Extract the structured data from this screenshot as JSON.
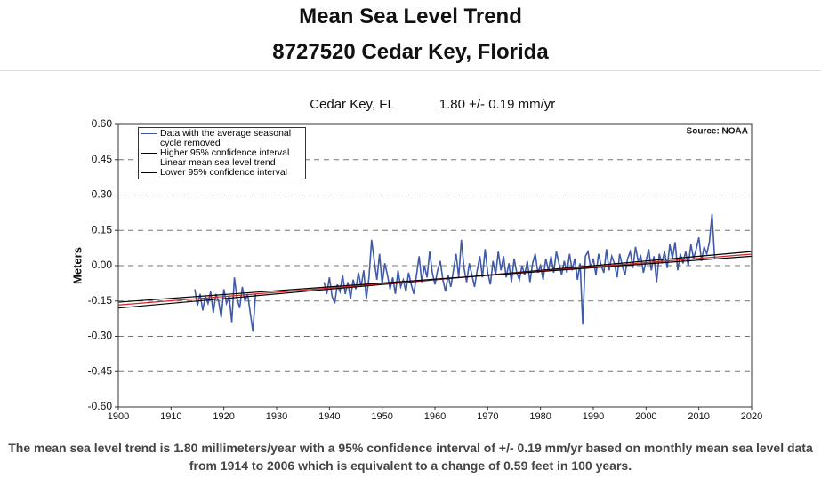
{
  "header": {
    "title": "Mean Sea Level Trend",
    "subtitle": "8727520 Cedar Key, Florida"
  },
  "chart_data": {
    "type": "line",
    "title": "Cedar Key, FL",
    "trend_label": "1.80 +/- 0.19 mm/yr",
    "source": "Source: NOAA",
    "y_label": "Meters",
    "xlim": [
      1900,
      2020
    ],
    "xticks": [
      1900,
      1910,
      1920,
      1930,
      1940,
      1950,
      1960,
      1970,
      1980,
      1990,
      2000,
      2010,
      2020
    ],
    "ylim": [
      -0.6,
      0.6
    ],
    "yticks": [
      {
        "value": -0.6,
        "label": "-0.60"
      },
      -0.45,
      {
        "value": -0.3,
        "label": "-0.30"
      },
      -0.15,
      {
        "value": 0,
        "label": "0.00"
      },
      0.15,
      {
        "value": 0.3,
        "label": "0.30"
      },
      0.45,
      {
        "value": 0.6,
        "label": "0.60"
      }
    ],
    "grid": true,
    "legend": "upper left",
    "series": [
      {
        "name": "Data with the average seasonal cycle removed",
        "color": "#3f5aa8",
        "x": [
          1914.5,
          1915,
          1915.5,
          1916,
          1916.5,
          1917,
          1917.5,
          1918,
          1918.5,
          1919,
          1919.5,
          1920,
          1920.5,
          1921,
          1921.5,
          1922,
          1922.5,
          1923,
          1923.5,
          1924,
          1924.5,
          1925,
          1925.5,
          1926,
          1932,
          1939,
          1939.5,
          1940,
          1940.5,
          1941,
          1941.5,
          1942,
          1942.5,
          1943,
          1943.5,
          1944,
          1944.5,
          1945,
          1945.5,
          1946,
          1946.5,
          1947,
          1947.5,
          1948,
          1948.5,
          1949,
          1949.5,
          1950,
          1950.5,
          1951,
          1951.5,
          1952,
          1952.5,
          1953,
          1953.5,
          1954,
          1954.5,
          1955,
          1955.5,
          1956,
          1956.5,
          1957,
          1957.5,
          1958,
          1958.5,
          1959,
          1959.5,
          1960,
          1960.5,
          1961,
          1961.5,
          1962,
          1962.5,
          1963,
          1963.5,
          1964,
          1964.5,
          1965,
          1965.5,
          1966,
          1966.5,
          1967,
          1967.5,
          1968,
          1968.5,
          1969,
          1969.5,
          1970,
          1970.5,
          1971,
          1971.5,
          1972,
          1972.5,
          1973,
          1973.5,
          1974,
          1974.5,
          1975,
          1975.5,
          1976,
          1976.5,
          1977,
          1977.5,
          1978,
          1978.5,
          1979,
          1979.5,
          1980,
          1980.5,
          1981,
          1981.5,
          1982,
          1982.5,
          1983,
          1983.5,
          1984,
          1984.5,
          1985,
          1985.5,
          1986,
          1986.5,
          1987,
          1987.5,
          1988,
          1988.5,
          1989,
          1989.5,
          1990,
          1990.5,
          1991,
          1991.5,
          1992,
          1992.5,
          1993,
          1993.5,
          1994,
          1994.5,
          1995,
          1995.5,
          1996,
          1996.5,
          1997,
          1997.5,
          1998,
          1998.5,
          1999,
          1999.5,
          2000,
          2000.5,
          2001,
          2001.5,
          2002,
          2002.5,
          2003,
          2003.5,
          2004,
          2004.5,
          2005,
          2005.5,
          2006,
          2006.5,
          2007,
          2007.5,
          2008,
          2008.5,
          2009,
          2009.5,
          2010,
          2010.5,
          2011,
          2011.5,
          2012,
          2012.5,
          2013
        ],
        "values": [
          -0.1,
          -0.17,
          -0.12,
          -0.19,
          -0.13,
          -0.16,
          -0.11,
          -0.2,
          -0.12,
          -0.15,
          -0.22,
          -0.1,
          -0.16,
          -0.13,
          -0.24,
          -0.05,
          -0.14,
          -0.18,
          -0.09,
          -0.15,
          -0.12,
          -0.2,
          -0.28,
          -0.12,
          null,
          -0.07,
          -0.12,
          -0.05,
          -0.13,
          -0.16,
          -0.08,
          -0.11,
          -0.04,
          -0.12,
          -0.07,
          -0.14,
          -0.06,
          -0.1,
          -0.03,
          -0.09,
          -0.02,
          -0.14,
          -0.05,
          0.11,
          0.02,
          -0.06,
          0.05,
          -0.08,
          0.01,
          -0.04,
          -0.1,
          -0.05,
          -0.12,
          -0.02,
          -0.09,
          -0.06,
          -0.11,
          -0.03,
          -0.08,
          -0.12,
          -0.04,
          0.04,
          -0.07,
          0.0,
          -0.05,
          0.06,
          -0.03,
          -0.08,
          -0.02,
          0.02,
          -0.06,
          -0.11,
          -0.04,
          -0.09,
          -0.02,
          0.05,
          -0.05,
          0.11,
          -0.01,
          -0.07,
          0.01,
          -0.04,
          -0.09,
          -0.02,
          0.04,
          -0.05,
          0.07,
          -0.03,
          -0.08,
          0.02,
          -0.04,
          0.06,
          -0.02,
          0.04,
          -0.05,
          0.01,
          -0.07,
          0.03,
          -0.03,
          -0.06,
          0.0,
          -0.04,
          0.02,
          -0.07,
          0.01,
          0.05,
          -0.03,
          0.0,
          -0.06,
          0.03,
          -0.02,
          0.04,
          -0.03,
          0.06,
          0.01,
          -0.04,
          0.02,
          -0.03,
          0.05,
          -0.02,
          0.03,
          -0.06,
          0.01,
          -0.25,
          0.04,
          0.06,
          -0.01,
          0.03,
          -0.04,
          0.05,
          0.0,
          -0.03,
          0.07,
          -0.02,
          0.04,
          0.01,
          -0.05,
          0.05,
          0.0,
          -0.04,
          0.03,
          0.06,
          -0.01,
          0.08,
          0.02,
          0.04,
          -0.03,
          0.02,
          0.07,
          -0.02,
          0.04,
          -0.07,
          0.05,
          0.01,
          0.06,
          -0.01,
          0.09,
          0.03,
          0.1,
          -0.02,
          0.05,
          0.01,
          0.06,
          0.0,
          0.09,
          0.03,
          0.07,
          0.12,
          0.02,
          0.08,
          0.05,
          0.1,
          0.22,
          0.03
        ]
      },
      {
        "name": "Higher 95% confidence interval",
        "color": "#000000",
        "x": [
          1900,
          2020
        ],
        "values": [
          -0.18,
          0.06
        ]
      },
      {
        "name": "Linear mean sea level trend",
        "color": "#cc2222",
        "x": [
          1900,
          2020
        ],
        "values": [
          -0.167,
          0.049
        ]
      },
      {
        "name": "Lower 95% confidence interval",
        "color": "#000000",
        "x": [
          1900,
          2020
        ],
        "values": [
          -0.155,
          0.04
        ]
      }
    ]
  },
  "footer": "The mean sea level trend is 1.80 millimeters/year with a 95% confidence interval of +/- 0.19 mm/yr based on monthly mean sea level data from 1914 to 2006 which is equivalent to a change of 0.59 feet in 100 years."
}
